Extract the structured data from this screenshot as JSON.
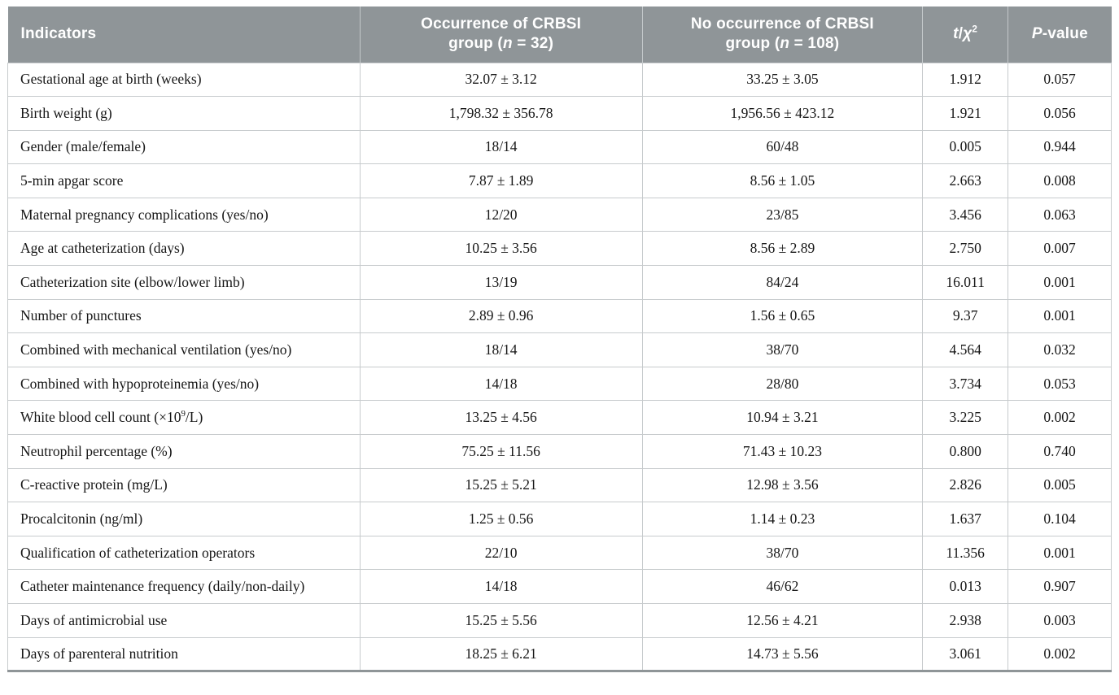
{
  "colors": {
    "header_bg": "#8f9598",
    "header_text": "#ffffff",
    "grid_line": "#c7cbcd",
    "body_text": "#161616"
  },
  "table": {
    "header": {
      "columns": [
        {
          "id": "indicators",
          "label": "Indicators"
        },
        {
          "id": "occurrence_group",
          "label": "Occurrence of CRBSI\ngroup (*n* = 32)"
        },
        {
          "id": "no_occurrence_group",
          "label": "No occurrence of CRBSI\ngroup (*n* = 108)"
        },
        {
          "id": "t_chi2",
          "label": "*t*/*χ*^2^"
        },
        {
          "id": "p_value",
          "label": "*P*-value"
        }
      ]
    },
    "rows": [
      {
        "indicator": "Gestational age at birth (weeks)",
        "occurrence": "32.07 ± 3.12",
        "no_occurrence": "33.25 ± 3.05",
        "t_chi2": "1.912",
        "p_value": "0.057"
      },
      {
        "indicator": "Birth weight (g)",
        "occurrence": "1,798.32 ± 356.78",
        "no_occurrence": "1,956.56 ± 423.12",
        "t_chi2": "1.921",
        "p_value": "0.056"
      },
      {
        "indicator": "Gender (male/female)",
        "occurrence": "18/14",
        "no_occurrence": "60/48",
        "t_chi2": "0.005",
        "p_value": "0.944"
      },
      {
        "indicator": "5-min apgar score",
        "occurrence": "7.87 ± 1.89",
        "no_occurrence": "8.56 ± 1.05",
        "t_chi2": "2.663",
        "p_value": "0.008"
      },
      {
        "indicator": "Maternal pregnancy complications (yes/no)",
        "occurrence": "12/20",
        "no_occurrence": "23/85",
        "t_chi2": "3.456",
        "p_value": "0.063"
      },
      {
        "indicator": "Age at catheterization (days)",
        "occurrence": "10.25 ± 3.56",
        "no_occurrence": "8.56 ± 2.89",
        "t_chi2": "2.750",
        "p_value": "0.007"
      },
      {
        "indicator": "Catheterization site (elbow/lower limb)",
        "occurrence": "13/19",
        "no_occurrence": "84/24",
        "t_chi2": "16.011",
        "p_value": "0.001"
      },
      {
        "indicator": "Number of punctures",
        "occurrence": "2.89 ± 0.96",
        "no_occurrence": "1.56 ± 0.65",
        "t_chi2": "9.37",
        "p_value": "0.001"
      },
      {
        "indicator": "Combined with mechanical ventilation (yes/no)",
        "occurrence": "18/14",
        "no_occurrence": "38/70",
        "t_chi2": "4.564",
        "p_value": "0.032"
      },
      {
        "indicator": "Combined with hypoproteinemia (yes/no)",
        "occurrence": "14/18",
        "no_occurrence": "28/80",
        "t_chi2": "3.734",
        "p_value": "0.053"
      },
      {
        "indicator": "White blood cell count (×10^9^/L)",
        "occurrence": "13.25 ± 4.56",
        "no_occurrence": "10.94 ± 3.21",
        "t_chi2": "3.225",
        "p_value": "0.002"
      },
      {
        "indicator": "Neutrophil percentage (%)",
        "occurrence": "75.25 ± 11.56",
        "no_occurrence": "71.43 ± 10.23",
        "t_chi2": "0.800",
        "p_value": "0.740"
      },
      {
        "indicator": "C-reactive protein (mg/L)",
        "occurrence": "15.25 ± 5.21",
        "no_occurrence": "12.98 ± 3.56",
        "t_chi2": "2.826",
        "p_value": "0.005"
      },
      {
        "indicator": "Procalcitonin (ng/ml)",
        "occurrence": "1.25 ± 0.56",
        "no_occurrence": "1.14 ± 0.23",
        "t_chi2": "1.637",
        "p_value": "0.104"
      },
      {
        "indicator": "Qualification of catheterization operators",
        "occurrence": "22/10",
        "no_occurrence": "38/70",
        "t_chi2": "11.356",
        "p_value": "0.001"
      },
      {
        "indicator": "Catheter maintenance frequency (daily/non-daily)",
        "occurrence": "14/18",
        "no_occurrence": "46/62",
        "t_chi2": "0.013",
        "p_value": "0.907"
      },
      {
        "indicator": "Days of antimicrobial use",
        "occurrence": "15.25 ± 5.56",
        "no_occurrence": "12.56 ± 4.21",
        "t_chi2": "2.938",
        "p_value": "0.003"
      },
      {
        "indicator": "Days of parenteral nutrition",
        "occurrence": "18.25 ± 6.21",
        "no_occurrence": "14.73 ± 5.56",
        "t_chi2": "3.061",
        "p_value": "0.002"
      }
    ]
  }
}
